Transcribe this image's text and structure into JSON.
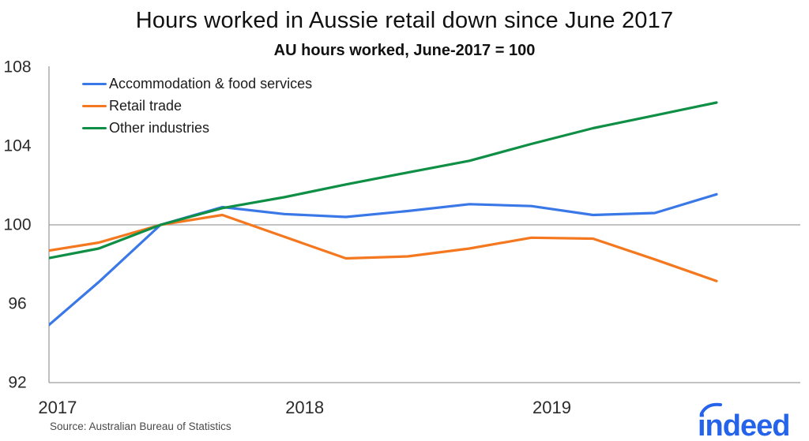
{
  "header": {
    "title": "Hours worked in Aussie retail down since June 2017",
    "subtitle": "AU hours worked, June-2017 = 100"
  },
  "chart_data": {
    "type": "line",
    "categories": [
      "Dec-2016",
      "Mar-2017",
      "Jun-2017",
      "Sep-2017",
      "Dec-2017",
      "Mar-2018",
      "Jun-2018",
      "Sep-2018",
      "Dec-2018",
      "Mar-2019",
      "Jun-2019",
      "Sep-2019"
    ],
    "series": [
      {
        "name": "Accommodation & food services",
        "color": "#3b78e7",
        "values": [
          94.4,
          97.1,
          100,
          100.9,
          100.55,
          100.4,
          100.7,
          101.05,
          100.95,
          100.5,
          100.6,
          101.55
        ]
      },
      {
        "name": "Retail trade",
        "color": "#f4781f",
        "values": [
          98.6,
          99.1,
          100,
          100.5,
          99.4,
          98.3,
          98.4,
          98.8,
          99.35,
          99.3,
          98.25,
          97.15
        ]
      },
      {
        "name": "Other industries",
        "color": "#0f8f45",
        "values": [
          98.2,
          98.8,
          100,
          100.85,
          101.4,
          102.05,
          102.65,
          103.25,
          104.1,
          104.9,
          105.55,
          106.2
        ]
      }
    ],
    "ylim": [
      92,
      108
    ],
    "yticks": [
      "108",
      "104",
      "100",
      "96",
      "92"
    ],
    "ytick_values": [
      108,
      104,
      100,
      96,
      92
    ],
    "xticks": [
      {
        "label": "2017",
        "month": 1
      },
      {
        "label": "2018",
        "month": 13
      },
      {
        "label": "2019",
        "month": 25
      }
    ],
    "baseline_value": 100,
    "grid": "horizontal-line-at-100-only",
    "legend_position": "top-left-inside"
  },
  "footer": {
    "source": "Source: Australian Bureau of Statistics",
    "logo_text": "indeed"
  },
  "colors": {
    "axis": "#9e9e9e",
    "baseline": "#9e9e9e",
    "tick_text": "#2b2b2b",
    "logo_blue": "#2563eb"
  }
}
